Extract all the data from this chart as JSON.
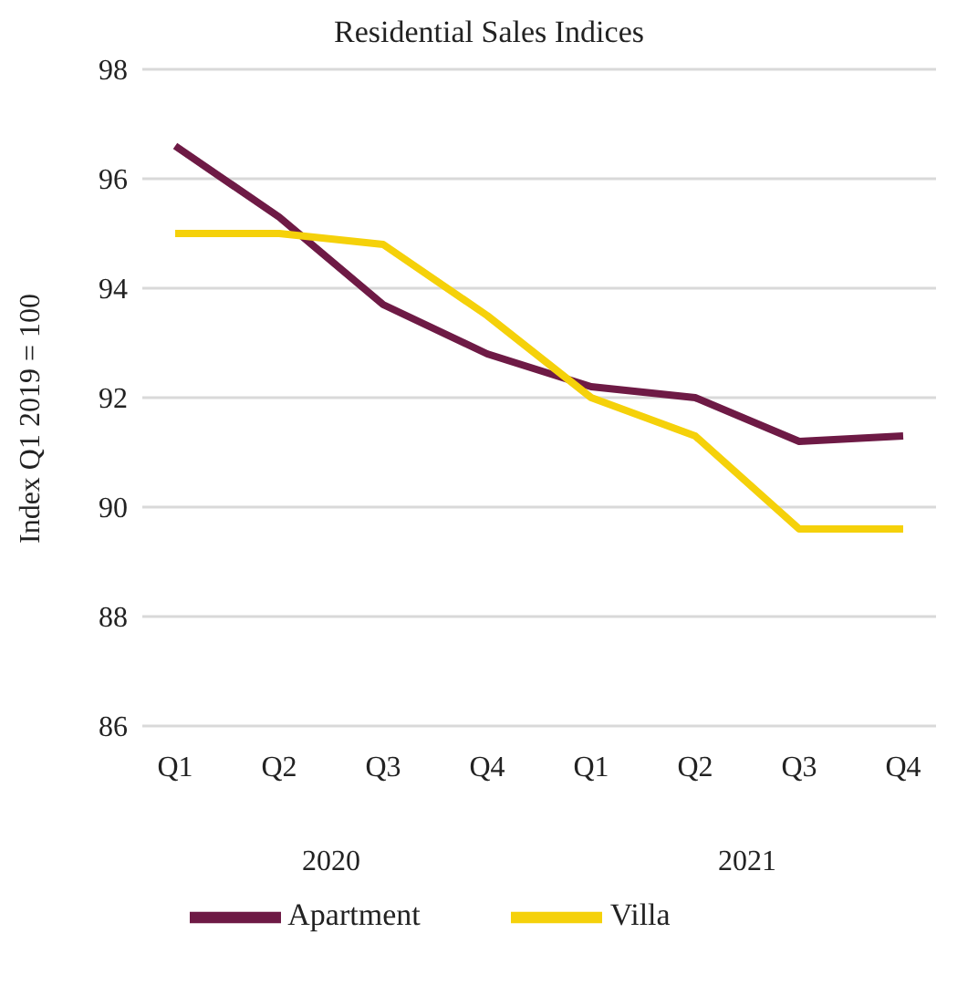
{
  "chart_data": {
    "type": "line",
    "title": "Residential Sales Indices",
    "ylabel": "Index Q1 2019 = 100",
    "categories": [
      "Q1",
      "Q2",
      "Q3",
      "Q4",
      "Q1",
      "Q2",
      "Q3",
      "Q4"
    ],
    "annotations": [
      "2020",
      "2021"
    ],
    "series": [
      {
        "name": "Apartment",
        "color": "#6e1a45",
        "values": [
          96.6,
          95.3,
          93.7,
          92.8,
          92.2,
          92.0,
          91.2,
          91.3
        ]
      },
      {
        "name": "Villa",
        "color": "#f5d10a",
        "values": [
          95.0,
          95.0,
          94.8,
          93.5,
          92.0,
          91.3,
          89.6,
          89.6
        ]
      }
    ],
    "ylim": [
      86,
      98
    ],
    "yticks": [
      86,
      88,
      90,
      92,
      94,
      96,
      98
    ],
    "grid": "y",
    "legend": "bottom",
    "marker": "none",
    "line_style": "solid"
  }
}
